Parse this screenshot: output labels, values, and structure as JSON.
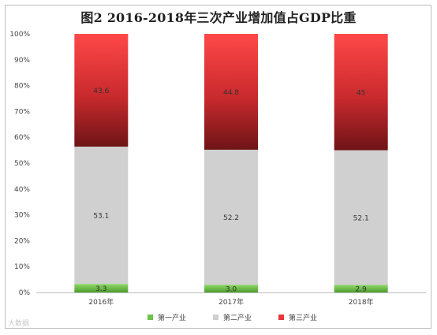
{
  "chart_data": {
    "type": "bar",
    "stacked": true,
    "title": "图2  2016-2018年三次产业增加值占GDP比重",
    "categories": [
      "2016年",
      "2017年",
      "2018年"
    ],
    "series": [
      {
        "name": "第一产业",
        "values": [
          3.3,
          3.0,
          2.9
        ],
        "color": "#6cc24a"
      },
      {
        "name": "第二产业",
        "values": [
          53.1,
          52.2,
          52.1
        ],
        "color": "#d0d0d0"
      },
      {
        "name": "第三产业",
        "values": [
          43.6,
          44.8,
          45
        ],
        "color": "#e8363a"
      }
    ],
    "data_labels": [
      [
        "3.3",
        "3.0",
        "2.9"
      ],
      [
        "53.1",
        "52.2",
        "52.1"
      ],
      [
        "43.6",
        "44.8",
        "45"
      ]
    ],
    "ylim": [
      0,
      100
    ],
    "ytick_labels": [
      "0%",
      "10%",
      "20%",
      "30%",
      "40%",
      "50%",
      "60%",
      "70%",
      "80%",
      "90%",
      "100%"
    ],
    "grid": false,
    "legend_position": "bottom"
  },
  "watermark": "大数据"
}
